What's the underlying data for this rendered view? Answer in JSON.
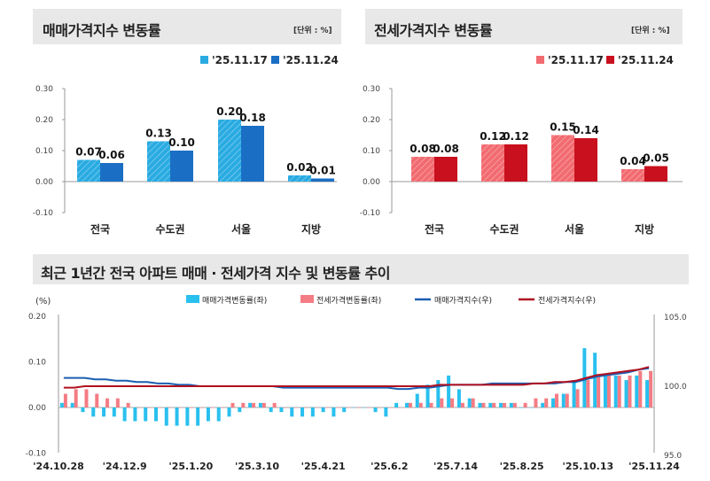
{
  "charts": [
    {
      "title": "매매가격지수 변동률",
      "unit": "[단위 : %]",
      "legend": [
        "'25.11.17",
        "'25.11.24"
      ],
      "colors": [
        "#29abe2",
        "#1a6fc4"
      ],
      "categories": [
        "전국",
        "수도권",
        "서울",
        "지방"
      ],
      "series": [
        {
          "name": "'25.11.17",
          "values": [
            0.07,
            0.13,
            0.2,
            0.02
          ]
        },
        {
          "name": "'25.11.24",
          "values": [
            0.06,
            0.1,
            0.18,
            0.01
          ]
        }
      ],
      "yticks": [
        "0.30",
        "0.20",
        "0.10",
        "0.00",
        "-0.10"
      ],
      "ylim": [
        -0.1,
        0.3
      ]
    },
    {
      "title": "전세가격지수 변동률",
      "unit": "[단위 : %]",
      "legend": [
        "'25.11.17",
        "'25.11.24"
      ],
      "colors": [
        "#f26b70",
        "#c8101e"
      ],
      "categories": [
        "전국",
        "수도권",
        "서울",
        "지방"
      ],
      "series": [
        {
          "name": "'25.11.17",
          "values": [
            0.08,
            0.12,
            0.15,
            0.04
          ]
        },
        {
          "name": "'25.11.24",
          "values": [
            0.08,
            0.12,
            0.14,
            0.05
          ]
        }
      ],
      "yticks": [
        "0.30",
        "0.20",
        "0.10",
        "0.00",
        "-0.10"
      ],
      "ylim": [
        -0.1,
        0.3
      ]
    }
  ],
  "trend": {
    "title": "최근 1년간 전국 아파트 매매 · 전세가격 지수 및 변동률 추이",
    "left_unit": "(%)",
    "legend": [
      "매매가격변동률(좌)",
      "전세가격변동률(좌)",
      "매매가격지수(우)",
      "전세가격지수(우)"
    ],
    "colors": {
      "sale_rate": "#29c0ee",
      "jeonse_rate": "#f47c84",
      "sale_index": "#1b5fb0",
      "jeonse_index": "#b01020"
    },
    "left_ticks": [
      "0.20",
      "0.10",
      "0.00",
      "-0.10"
    ],
    "right_ticks": [
      "105.0",
      "100.0",
      "95.0"
    ],
    "x_labels": [
      "'24.10.28",
      "'24.12.9",
      "'25.1.20",
      "'25.3.10",
      "'25.4.21",
      "'25.6.2",
      "'25.7.14",
      "'25.8.25",
      "'25.10.13",
      "'25.11.24"
    ]
  },
  "chart_data": {
    "type": "bar",
    "title": "최근 1년간 전국 아파트 매매 · 전세가격 지수 및 변동률 추이",
    "ylim": [
      -0.1,
      0.2
    ],
    "y2lim": [
      95.0,
      105.0
    ],
    "x_labels": [
      "'24.10.28",
      "'24.12.9",
      "'25.1.20",
      "'25.3.10",
      "'25.4.21",
      "'25.6.2",
      "'25.7.14",
      "'25.8.25",
      "'25.10.13",
      "'25.11.24"
    ],
    "series": [
      {
        "name": "매매가격변동률(좌)",
        "values": [
          0.01,
          0.01,
          -0.01,
          -0.02,
          -0.02,
          -0.02,
          -0.03,
          -0.03,
          -0.03,
          -0.03,
          -0.04,
          -0.04,
          -0.04,
          -0.04,
          -0.03,
          -0.03,
          -0.02,
          -0.01,
          0.01,
          0.01,
          -0.01,
          -0.01,
          -0.02,
          -0.02,
          -0.02,
          -0.01,
          -0.02,
          -0.01,
          0.0,
          0.0,
          -0.01,
          -0.02,
          0.01,
          0.01,
          0.03,
          0.05,
          0.06,
          0.07,
          0.04,
          0.02,
          0.01,
          0.01,
          0.01,
          0.01,
          0.0,
          0.0,
          0.01,
          0.02,
          0.03,
          0.06,
          0.13,
          0.12,
          0.07,
          0.07,
          0.06,
          0.07,
          0.06
        ]
      },
      {
        "name": "전세가격변동률(좌)",
        "values": [
          0.03,
          0.04,
          0.04,
          0.03,
          0.02,
          0.02,
          0.01,
          0.0,
          0.0,
          0.0,
          0.0,
          0.0,
          0.0,
          0.0,
          0.0,
          0.0,
          0.01,
          0.01,
          0.01,
          0.01,
          0.01,
          0.0,
          0.0,
          0.0,
          0.0,
          0.0,
          0.0,
          0.0,
          0.0,
          0.0,
          0.0,
          0.0,
          0.0,
          0.01,
          0.01,
          0.01,
          0.02,
          0.02,
          0.01,
          0.02,
          0.01,
          0.01,
          0.01,
          0.01,
          0.01,
          0.02,
          0.02,
          0.03,
          0.03,
          0.04,
          0.06,
          0.07,
          0.07,
          0.07,
          0.07,
          0.08,
          0.08
        ]
      },
      {
        "name": "매매가격지수(우)",
        "values": [
          100.6,
          100.6,
          100.6,
          100.5,
          100.5,
          100.4,
          100.4,
          100.3,
          100.3,
          100.2,
          100.2,
          100.1,
          100.1,
          100.0,
          100.0,
          100.0,
          100.0,
          100.0,
          100.0,
          100.0,
          100.0,
          99.9,
          99.9,
          99.9,
          99.9,
          99.9,
          99.9,
          99.9,
          99.9,
          99.9,
          99.9,
          99.9,
          99.8,
          99.8,
          99.9,
          99.9,
          100.0,
          100.1,
          100.1,
          100.1,
          100.1,
          100.2,
          100.2,
          100.2,
          100.2,
          100.2,
          100.2,
          100.2,
          100.3,
          100.3,
          100.5,
          100.7,
          100.8,
          100.9,
          101.0,
          101.2,
          101.3
        ]
      },
      {
        "name": "전세가격지수(우)",
        "values": [
          99.9,
          99.9,
          100.0,
          100.0,
          100.0,
          100.0,
          100.0,
          100.0,
          100.0,
          100.0,
          100.0,
          100.0,
          100.0,
          100.0,
          100.0,
          100.0,
          100.0,
          100.0,
          100.0,
          100.0,
          100.0,
          100.0,
          100.0,
          100.0,
          100.0,
          100.0,
          100.0,
          100.0,
          100.0,
          100.0,
          100.0,
          100.0,
          100.0,
          100.0,
          100.0,
          100.0,
          100.1,
          100.1,
          100.1,
          100.1,
          100.1,
          100.1,
          100.1,
          100.1,
          100.1,
          100.2,
          100.2,
          100.3,
          100.3,
          100.4,
          100.6,
          100.8,
          100.9,
          101.0,
          101.1,
          101.2,
          101.4
        ]
      }
    ]
  }
}
